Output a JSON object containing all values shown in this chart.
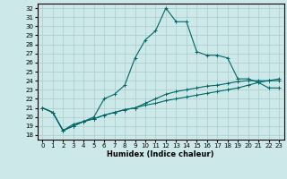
{
  "title": "",
  "xlabel": "Humidex (Indice chaleur)",
  "background_color": "#cce8e8",
  "grid_color": "#aacccc",
  "line_color": "#006666",
  "x_ticks": [
    0,
    1,
    2,
    3,
    4,
    5,
    6,
    7,
    8,
    9,
    10,
    11,
    12,
    13,
    14,
    15,
    16,
    17,
    18,
    19,
    20,
    21,
    22,
    23
  ],
  "xlim": [
    -0.5,
    23.5
  ],
  "ylim": [
    17.5,
    32.5
  ],
  "yticks": [
    18,
    19,
    20,
    21,
    22,
    23,
    24,
    25,
    26,
    27,
    28,
    29,
    30,
    31,
    32
  ],
  "series1_x": [
    0,
    1,
    2,
    3,
    4,
    5,
    6,
    7,
    8,
    9,
    10,
    11,
    12,
    13,
    14,
    15,
    16,
    17,
    18,
    19,
    20,
    21,
    22,
    23
  ],
  "series1_y": [
    21.0,
    20.5,
    18.5,
    19.2,
    19.5,
    20.0,
    22.0,
    22.5,
    23.5,
    26.5,
    28.5,
    29.5,
    32.0,
    30.5,
    30.5,
    27.2,
    26.8,
    26.8,
    26.5,
    24.2,
    24.2,
    23.8,
    23.2,
    23.2
  ],
  "series2_x": [
    0,
    1,
    2,
    3,
    4,
    5,
    6,
    7,
    8,
    9,
    10,
    11,
    12,
    13,
    14,
    15,
    16,
    17,
    18,
    19,
    20,
    21,
    22,
    23
  ],
  "series2_y": [
    21.0,
    20.5,
    18.5,
    19.0,
    19.5,
    19.8,
    20.2,
    20.5,
    20.8,
    21.0,
    21.3,
    21.5,
    21.8,
    22.0,
    22.2,
    22.4,
    22.6,
    22.8,
    23.0,
    23.2,
    23.5,
    23.8,
    24.0,
    24.2
  ],
  "series3_x": [
    0,
    1,
    2,
    3,
    4,
    5,
    6,
    7,
    8,
    9,
    10,
    11,
    12,
    13,
    14,
    15,
    16,
    17,
    18,
    19,
    20,
    21,
    22,
    23
  ],
  "series3_y": [
    21.0,
    20.5,
    18.5,
    19.0,
    19.5,
    19.8,
    20.2,
    20.5,
    20.8,
    21.0,
    21.5,
    22.0,
    22.5,
    22.8,
    23.0,
    23.2,
    23.4,
    23.5,
    23.7,
    23.9,
    24.0,
    24.0,
    24.0,
    24.0
  ],
  "tick_fontsize": 5,
  "xlabel_fontsize": 6,
  "line_width": 0.8,
  "marker_size": 2.5
}
